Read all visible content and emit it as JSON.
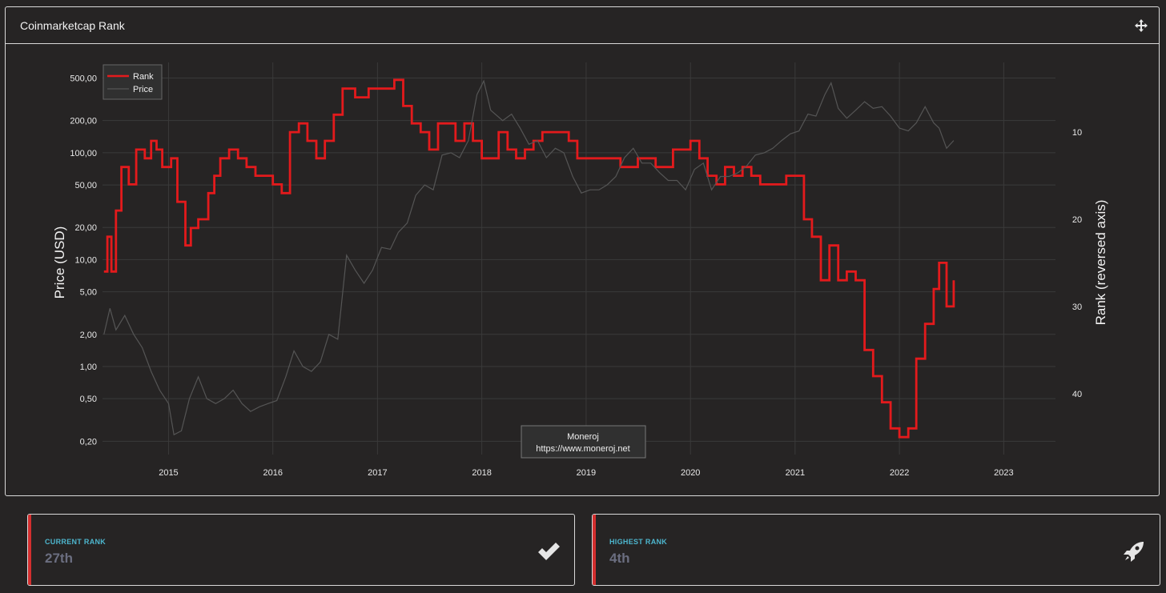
{
  "panel": {
    "title": "Coinmarketcap Rank"
  },
  "chart_data": {
    "type": "line",
    "xlabel": "",
    "ylabel_left": "Price (USD)",
    "ylabel_right": "Rank (reversed axis)",
    "x_ticks": [
      "2015",
      "2016",
      "2017",
      "2018",
      "2019",
      "2020",
      "2021",
      "2022",
      "2023"
    ],
    "y_left_scale": "log",
    "y_left_ticks": [
      "500,00",
      "200,00",
      "100,00",
      "50,00",
      "20,00",
      "10,00",
      "5,00",
      "2,00",
      "1,00",
      "0,50",
      "0,20"
    ],
    "y_left_range": [
      0.15,
      700
    ],
    "y_right_ticks": [
      "10",
      "20",
      "30",
      "40"
    ],
    "y_right_range": [
      47,
      2
    ],
    "x_range": [
      "2014-05-15",
      "2023-07-01"
    ],
    "legend": {
      "placement": "top-left",
      "entries": [
        "Rank",
        "Price"
      ]
    },
    "grid": true,
    "watermark": {
      "line1": "Moneroj",
      "line2": "https://www.moneroj.net"
    },
    "colors": {
      "rank": "#e31a1c",
      "price": "#555555"
    },
    "series": [
      {
        "name": "Rank",
        "axis": "right",
        "points": [
          [
            "2014-05-20",
            26
          ],
          [
            "2014-06-01",
            22
          ],
          [
            "2014-06-15",
            26
          ],
          [
            "2014-07-01",
            19
          ],
          [
            "2014-07-20",
            14
          ],
          [
            "2014-08-15",
            16
          ],
          [
            "2014-09-10",
            12
          ],
          [
            "2014-10-10",
            13
          ],
          [
            "2014-11-01",
            11
          ],
          [
            "2014-11-20",
            12
          ],
          [
            "2014-12-10",
            14
          ],
          [
            "2015-01-10",
            13
          ],
          [
            "2015-02-01",
            18
          ],
          [
            "2015-03-01",
            23
          ],
          [
            "2015-03-20",
            21
          ],
          [
            "2015-04-15",
            20
          ],
          [
            "2015-05-20",
            17
          ],
          [
            "2015-06-10",
            15
          ],
          [
            "2015-07-01",
            13
          ],
          [
            "2015-08-01",
            12
          ],
          [
            "2015-09-01",
            13
          ],
          [
            "2015-10-01",
            14
          ],
          [
            "2015-11-01",
            15
          ],
          [
            "2015-12-01",
            15
          ],
          [
            "2016-01-01",
            16
          ],
          [
            "2016-02-01",
            17
          ],
          [
            "2016-03-01",
            10
          ],
          [
            "2016-04-01",
            9
          ],
          [
            "2016-05-01",
            11
          ],
          [
            "2016-06-01",
            13
          ],
          [
            "2016-07-01",
            11
          ],
          [
            "2016-08-01",
            8
          ],
          [
            "2016-09-01",
            5
          ],
          [
            "2016-10-15",
            6
          ],
          [
            "2016-12-01",
            5
          ],
          [
            "2017-02-01",
            5
          ],
          [
            "2017-03-01",
            4
          ],
          [
            "2017-04-01",
            7
          ],
          [
            "2017-05-01",
            9
          ],
          [
            "2017-06-01",
            10
          ],
          [
            "2017-07-01",
            12
          ],
          [
            "2017-08-01",
            9
          ],
          [
            "2017-09-01",
            9
          ],
          [
            "2017-10-01",
            11
          ],
          [
            "2017-11-01",
            9
          ],
          [
            "2017-12-01",
            11
          ],
          [
            "2018-01-01",
            13
          ],
          [
            "2018-02-01",
            13
          ],
          [
            "2018-03-01",
            10
          ],
          [
            "2018-04-01",
            12
          ],
          [
            "2018-05-01",
            13
          ],
          [
            "2018-06-01",
            12
          ],
          [
            "2018-07-01",
            11
          ],
          [
            "2018-08-01",
            10
          ],
          [
            "2018-09-01",
            10
          ],
          [
            "2018-10-01",
            10
          ],
          [
            "2018-11-01",
            11
          ],
          [
            "2018-12-01",
            13
          ],
          [
            "2019-01-01",
            13
          ],
          [
            "2019-03-01",
            13
          ],
          [
            "2019-05-01",
            14
          ],
          [
            "2019-07-01",
            13
          ],
          [
            "2019-09-01",
            14
          ],
          [
            "2019-11-01",
            12
          ],
          [
            "2020-01-01",
            11
          ],
          [
            "2020-02-01",
            13
          ],
          [
            "2020-03-01",
            15
          ],
          [
            "2020-04-01",
            16
          ],
          [
            "2020-05-01",
            14
          ],
          [
            "2020-06-01",
            15
          ],
          [
            "2020-07-01",
            14
          ],
          [
            "2020-08-01",
            15
          ],
          [
            "2020-09-01",
            16
          ],
          [
            "2020-10-01",
            16
          ],
          [
            "2020-11-01",
            16
          ],
          [
            "2020-12-01",
            15
          ],
          [
            "2021-01-01",
            15
          ],
          [
            "2021-02-01",
            20
          ],
          [
            "2021-03-01",
            22
          ],
          [
            "2021-04-01",
            27
          ],
          [
            "2021-05-01",
            23
          ],
          [
            "2021-06-01",
            27
          ],
          [
            "2021-07-01",
            26
          ],
          [
            "2021-08-01",
            27
          ],
          [
            "2021-09-01",
            35
          ],
          [
            "2021-10-01",
            38
          ],
          [
            "2021-11-01",
            41
          ],
          [
            "2021-12-01",
            44
          ],
          [
            "2022-01-01",
            45
          ],
          [
            "2022-02-01",
            44
          ],
          [
            "2022-03-01",
            36
          ],
          [
            "2022-04-01",
            32
          ],
          [
            "2022-05-01",
            28
          ],
          [
            "2022-05-20",
            25
          ],
          [
            "2022-06-15",
            30
          ],
          [
            "2022-07-10",
            27
          ]
        ]
      },
      {
        "name": "Price",
        "axis": "left",
        "points": [
          [
            "2014-05-20",
            2.0
          ],
          [
            "2014-06-10",
            3.5
          ],
          [
            "2014-07-01",
            2.2
          ],
          [
            "2014-08-01",
            3.0
          ],
          [
            "2014-09-01",
            2.0
          ],
          [
            "2014-10-01",
            1.5
          ],
          [
            "2014-11-01",
            0.9
          ],
          [
            "2014-12-01",
            0.6
          ],
          [
            "2015-01-01",
            0.45
          ],
          [
            "2015-01-20",
            0.23
          ],
          [
            "2015-02-15",
            0.25
          ],
          [
            "2015-03-15",
            0.5
          ],
          [
            "2015-04-15",
            0.8
          ],
          [
            "2015-05-15",
            0.5
          ],
          [
            "2015-06-15",
            0.45
          ],
          [
            "2015-07-15",
            0.5
          ],
          [
            "2015-08-15",
            0.6
          ],
          [
            "2015-09-15",
            0.45
          ],
          [
            "2015-10-15",
            0.38
          ],
          [
            "2015-11-15",
            0.42
          ],
          [
            "2015-12-15",
            0.45
          ],
          [
            "2016-01-15",
            0.48
          ],
          [
            "2016-02-15",
            0.8
          ],
          [
            "2016-03-15",
            1.4
          ],
          [
            "2016-04-15",
            1.0
          ],
          [
            "2016-05-15",
            0.9
          ],
          [
            "2016-06-15",
            1.1
          ],
          [
            "2016-07-15",
            2.0
          ],
          [
            "2016-08-15",
            1.8
          ],
          [
            "2016-09-15",
            11.0
          ],
          [
            "2016-10-15",
            8.0
          ],
          [
            "2016-11-15",
            6.0
          ],
          [
            "2016-12-15",
            8.0
          ],
          [
            "2017-01-15",
            13.0
          ],
          [
            "2017-02-15",
            12.5
          ],
          [
            "2017-03-15",
            18.0
          ],
          [
            "2017-04-15",
            22.0
          ],
          [
            "2017-05-15",
            40.0
          ],
          [
            "2017-06-15",
            50.0
          ],
          [
            "2017-07-15",
            45.0
          ],
          [
            "2017-08-15",
            95.0
          ],
          [
            "2017-09-15",
            100.0
          ],
          [
            "2017-10-15",
            90.0
          ],
          [
            "2017-11-15",
            130.0
          ],
          [
            "2017-12-15",
            350.0
          ],
          [
            "2018-01-08",
            470.0
          ],
          [
            "2018-02-01",
            250.0
          ],
          [
            "2018-03-15",
            200.0
          ],
          [
            "2018-04-15",
            230.0
          ],
          [
            "2018-05-15",
            170.0
          ],
          [
            "2018-06-15",
            120.0
          ],
          [
            "2018-07-15",
            130.0
          ],
          [
            "2018-08-15",
            90.0
          ],
          [
            "2018-09-15",
            110.0
          ],
          [
            "2018-10-15",
            100.0
          ],
          [
            "2018-11-15",
            60.0
          ],
          [
            "2018-12-15",
            42.0
          ],
          [
            "2019-01-15",
            45.0
          ],
          [
            "2019-02-15",
            45.0
          ],
          [
            "2019-03-15",
            50.0
          ],
          [
            "2019-04-15",
            60.0
          ],
          [
            "2019-05-15",
            90.0
          ],
          [
            "2019-06-15",
            110.0
          ],
          [
            "2019-07-15",
            80.0
          ],
          [
            "2019-08-15",
            80.0
          ],
          [
            "2019-09-15",
            65.0
          ],
          [
            "2019-10-15",
            55.0
          ],
          [
            "2019-11-15",
            55.0
          ],
          [
            "2019-12-15",
            45.0
          ],
          [
            "2020-01-15",
            70.0
          ],
          [
            "2020-02-15",
            80.0
          ],
          [
            "2020-03-15",
            45.0
          ],
          [
            "2020-04-15",
            60.0
          ],
          [
            "2020-05-15",
            60.0
          ],
          [
            "2020-06-15",
            65.0
          ],
          [
            "2020-07-15",
            75.0
          ],
          [
            "2020-08-15",
            95.0
          ],
          [
            "2020-09-15",
            100.0
          ],
          [
            "2020-10-15",
            110.0
          ],
          [
            "2020-11-15",
            130.0
          ],
          [
            "2020-12-15",
            150.0
          ],
          [
            "2021-01-15",
            160.0
          ],
          [
            "2021-02-15",
            230.0
          ],
          [
            "2021-03-15",
            220.0
          ],
          [
            "2021-04-15",
            350.0
          ],
          [
            "2021-05-07",
            450.0
          ],
          [
            "2021-06-01",
            260.0
          ],
          [
            "2021-07-01",
            210.0
          ],
          [
            "2021-08-01",
            250.0
          ],
          [
            "2021-09-01",
            300.0
          ],
          [
            "2021-10-01",
            260.0
          ],
          [
            "2021-11-01",
            270.0
          ],
          [
            "2021-12-01",
            220.0
          ],
          [
            "2022-01-01",
            170.0
          ],
          [
            "2022-02-01",
            160.0
          ],
          [
            "2022-03-01",
            190.0
          ],
          [
            "2022-04-01",
            270.0
          ],
          [
            "2022-05-01",
            190.0
          ],
          [
            "2022-05-20",
            170.0
          ],
          [
            "2022-06-15",
            110.0
          ],
          [
            "2022-07-10",
            130.0
          ]
        ]
      }
    ]
  },
  "cards": [
    {
      "label": "CURRENT RANK",
      "value": "27th",
      "icon": "check-icon"
    },
    {
      "label": "HIGHEST RANK",
      "value": "4th",
      "icon": "rocket-icon"
    }
  ]
}
